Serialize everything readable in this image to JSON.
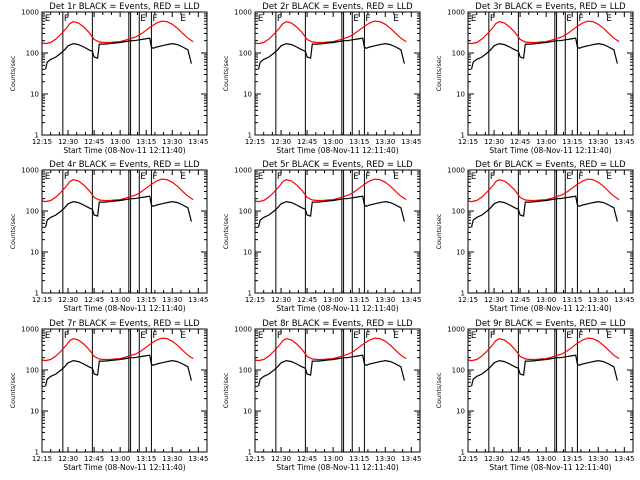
{
  "colors": {
    "events": "#000000",
    "lld": "#ff0000",
    "axis": "#000000"
  },
  "panels": [
    {
      "title": "Det 1r BLACK = Events, RED = LLD"
    },
    {
      "title": "Det 2r BLACK = Events, RED = LLD"
    },
    {
      "title": "Det 3r BLACK = Events, RED = LLD"
    },
    {
      "title": "Det 4r BLACK = Events, RED = LLD"
    },
    {
      "title": "Det 5r BLACK = Events, RED = LLD"
    },
    {
      "title": "Det 6r BLACK = Events, RED = LLD"
    },
    {
      "title": "Det 7r BLACK = Events, RED = LLD"
    },
    {
      "title": "Det 8r BLACK = Events, RED = LLD"
    },
    {
      "title": "Det 9r BLACK = Events, RED = LLD"
    }
  ],
  "chart_data": {
    "type": "line",
    "layout": "3x3 small multiples",
    "xlabel": "Start Time (08-Nov-11 12:11:40)",
    "ylabel": "Counts/sec",
    "yscale": "log",
    "ylim": [
      1,
      1000
    ],
    "yticks": [
      "1",
      "10",
      "100",
      "1000"
    ],
    "xlim_minutes_after_1215": [
      0,
      95
    ],
    "xticks": [
      "12:15",
      "12:30",
      "12:45",
      "13:00",
      "13:15",
      "13:30",
      "13:45"
    ],
    "flag_labels": [
      "E",
      "F",
      "E",
      "F",
      "E"
    ],
    "flag_times": [
      "12:16",
      "12:27",
      "13:11",
      "13:18",
      "13:34"
    ],
    "vertical_lines": [
      "12:27",
      "12:44",
      "13:05",
      "13:06",
      "13:11",
      "13:18"
    ],
    "series": [
      {
        "name": "LLD",
        "color": "red",
        "x": [
          "12:15",
          "12:17",
          "12:20",
          "12:23",
          "12:26",
          "12:29",
          "12:31",
          "12:33",
          "12:36",
          "12:39",
          "12:42",
          "12:45",
          "12:48",
          "12:51",
          "12:54",
          "12:57",
          "13:00",
          "13:03",
          "13:06",
          "13:09",
          "13:12",
          "13:15",
          "13:18",
          "13:21",
          "13:24",
          "13:27",
          "13:30",
          "13:33",
          "13:36",
          "13:39",
          "13:42"
        ],
        "values": [
          175,
          170,
          180,
          220,
          290,
          400,
          520,
          580,
          540,
          430,
          320,
          215,
          185,
          180,
          180,
          185,
          190,
          205,
          225,
          245,
          290,
          360,
          450,
          540,
          600,
          580,
          500,
          400,
          300,
          230,
          190
        ]
      },
      {
        "name": "Events",
        "color": "black",
        "x": [
          "12:17",
          "12:18",
          "12:20",
          "12:23",
          "12:26",
          "12:28",
          "12:30",
          "12:33",
          "12:36",
          "12:39",
          "12:42",
          "12:44",
          "12:45",
          "12:47",
          "12:48",
          "12:51",
          "12:54",
          "12:57",
          "13:00",
          "13:03",
          "13:06",
          "13:08",
          "13:11",
          "13:14",
          "13:17",
          "13:18",
          "13:19",
          "13:21",
          "13:24",
          "13:27",
          "13:30",
          "13:33",
          "13:36",
          "13:39",
          "13:41"
        ],
        "values": [
          40,
          60,
          70,
          80,
          100,
          120,
          150,
          170,
          160,
          140,
          120,
          110,
          80,
          75,
          165,
          165,
          170,
          175,
          180,
          190,
          200,
          200,
          210,
          220,
          230,
          140,
          130,
          140,
          150,
          160,
          170,
          160,
          140,
          120,
          55
        ]
      }
    ]
  }
}
